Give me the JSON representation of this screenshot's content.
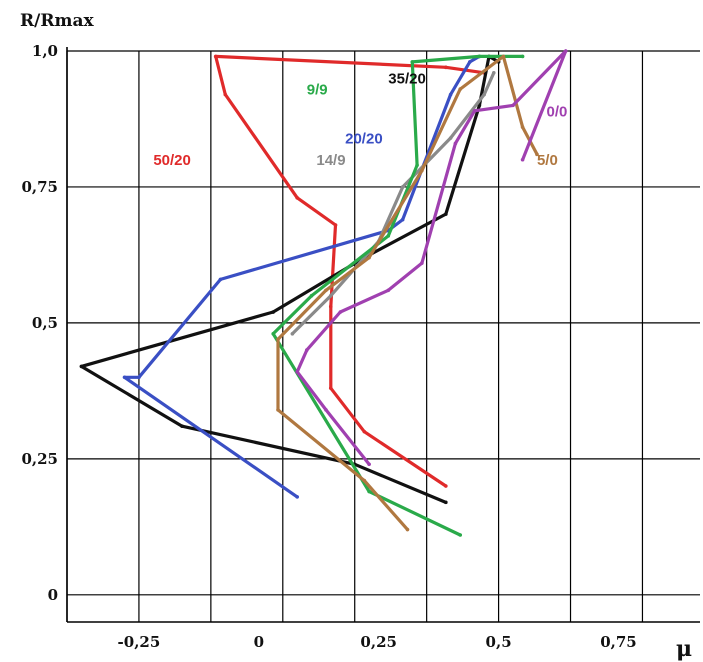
{
  "chart_data": {
    "type": "line",
    "xlabel": "μ",
    "ylabel": "R/Rmax",
    "xlim": [
      -0.4,
      0.92
    ],
    "ylim": [
      -0.05,
      1.0
    ],
    "x_ticks": [
      {
        "value": -0.25,
        "label": "-0,25"
      },
      {
        "value": 0,
        "label": "0"
      },
      {
        "value": 0.25,
        "label": "0,25"
      },
      {
        "value": 0.5,
        "label": "0,5"
      },
      {
        "value": 0.75,
        "label": "0,75"
      }
    ],
    "y_ticks": [
      {
        "value": 0,
        "label": "0"
      },
      {
        "value": 0.25,
        "label": "0,25"
      },
      {
        "value": 0.5,
        "label": "0,5"
      },
      {
        "value": 0.75,
        "label": "0,75"
      },
      {
        "value": 1.0,
        "label": "1,0"
      }
    ],
    "grid_x": [
      -0.4,
      -0.25,
      -0.1,
      0.05,
      0.2,
      0.35,
      0.5,
      0.65,
      0.8
    ],
    "grid_y": [
      0.0,
      0.25,
      0.5,
      0.75,
      1.0
    ],
    "grid": true,
    "series": [
      {
        "name": "50/20",
        "color": "#e02a2a",
        "points": [
          [
            0.39,
            0.2
          ],
          [
            0.22,
            0.3
          ],
          [
            0.15,
            0.38
          ],
          [
            0.15,
            0.53
          ],
          [
            0.16,
            0.68
          ],
          [
            0.08,
            0.73
          ],
          [
            -0.07,
            0.92
          ],
          [
            -0.09,
            0.99
          ],
          [
            0.39,
            0.97
          ],
          [
            0.47,
            0.96
          ]
        ]
      },
      {
        "name": "35/20",
        "color": "#111111",
        "points": [
          [
            0.39,
            0.17
          ],
          [
            0.2,
            0.24
          ],
          [
            -0.16,
            0.31
          ],
          [
            -0.37,
            0.42
          ],
          [
            0.03,
            0.52
          ],
          [
            0.22,
            0.62
          ],
          [
            0.39,
            0.7
          ],
          [
            0.46,
            0.9
          ],
          [
            0.48,
            0.99
          ],
          [
            0.5,
            0.98
          ]
        ]
      },
      {
        "name": "20/20",
        "color": "#3a4fc4",
        "points": [
          [
            0.08,
            0.18
          ],
          [
            -0.28,
            0.4
          ],
          [
            -0.25,
            0.4
          ],
          [
            -0.08,
            0.58
          ],
          [
            0.27,
            0.67
          ],
          [
            0.3,
            0.69
          ],
          [
            0.4,
            0.92
          ],
          [
            0.44,
            0.98
          ],
          [
            0.46,
            0.99
          ]
        ]
      },
      {
        "name": "14/9",
        "color": "#8a8a8a",
        "points": [
          [
            0.07,
            0.48
          ],
          [
            0.15,
            0.55
          ],
          [
            0.25,
            0.65
          ],
          [
            0.3,
            0.75
          ],
          [
            0.4,
            0.84
          ],
          [
            0.47,
            0.92
          ],
          [
            0.49,
            0.96
          ]
        ]
      },
      {
        "name": "9/9",
        "color": "#2aaa4a",
        "points": [
          [
            0.42,
            0.11
          ],
          [
            0.23,
            0.19
          ],
          [
            0.03,
            0.48
          ],
          [
            0.11,
            0.55
          ],
          [
            0.27,
            0.66
          ],
          [
            0.33,
            0.79
          ],
          [
            0.32,
            0.98
          ],
          [
            0.46,
            0.99
          ],
          [
            0.55,
            0.99
          ]
        ]
      },
      {
        "name": "5/0",
        "color": "#b07840",
        "points": [
          [
            0.31,
            0.12
          ],
          [
            0.22,
            0.21
          ],
          [
            0.04,
            0.34
          ],
          [
            0.04,
            0.47
          ],
          [
            0.14,
            0.56
          ],
          [
            0.23,
            0.62
          ],
          [
            0.34,
            0.78
          ],
          [
            0.42,
            0.93
          ],
          [
            0.51,
            0.99
          ],
          [
            0.55,
            0.86
          ],
          [
            0.58,
            0.81
          ]
        ]
      },
      {
        "name": "0/0",
        "color": "#a040b0",
        "points": [
          [
            0.23,
            0.24
          ],
          [
            0.14,
            0.34
          ],
          [
            0.08,
            0.41
          ],
          [
            0.1,
            0.45
          ],
          [
            0.17,
            0.52
          ],
          [
            0.27,
            0.56
          ],
          [
            0.34,
            0.61
          ],
          [
            0.41,
            0.83
          ],
          [
            0.45,
            0.89
          ],
          [
            0.53,
            0.9
          ],
          [
            0.64,
            1.0
          ],
          [
            0.55,
            0.8
          ]
        ]
      }
    ],
    "series_labels": [
      {
        "text": "50/20",
        "color": "#e02a2a",
        "x": -0.22,
        "y": 0.79
      },
      {
        "text": "35/20",
        "color": "#111111",
        "x": 0.27,
        "y": 0.94
      },
      {
        "text": "20/20",
        "color": "#3a4fc4",
        "x": 0.18,
        "y": 0.83
      },
      {
        "text": "14/9",
        "color": "#8a8a8a",
        "x": 0.12,
        "y": 0.79
      },
      {
        "text": "9/9",
        "color": "#2aaa4a",
        "x": 0.1,
        "y": 0.92
      },
      {
        "text": "5/0",
        "color": "#b07840",
        "x": 0.58,
        "y": 0.79
      },
      {
        "text": "0/0",
        "color": "#a040b0",
        "x": 0.6,
        "y": 0.88
      }
    ]
  }
}
